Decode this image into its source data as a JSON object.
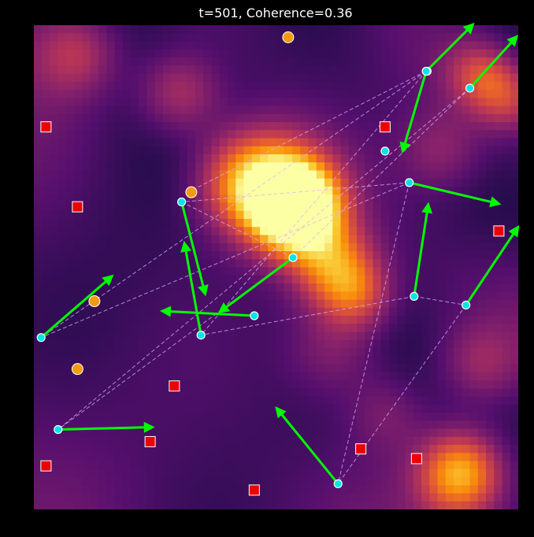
{
  "chart_data": {
    "type": "scatter",
    "title": "t=501, Coherence=0.36",
    "xlabel": "",
    "ylabel": "",
    "xlim": [
      0,
      1
    ],
    "ylim": [
      0,
      1
    ],
    "grid": false,
    "colors": {
      "agent_fill": "#00e5e5",
      "agent_edge": "#ffffff",
      "arrow": "#00ff00",
      "link": "#d9b3ff",
      "food_fill": "#f59a14",
      "obstacle_fill": "#ee0000",
      "background": "#000000"
    },
    "heatmap_peaks": [
      {
        "x": 0.545,
        "y": 0.62,
        "strength": 1.0,
        "spread": 0.06
      },
      {
        "x": 0.5,
        "y": 0.66,
        "strength": 0.55,
        "spread": 0.08
      },
      {
        "x": 0.62,
        "y": 0.5,
        "strength": 0.5,
        "spread": 0.06
      },
      {
        "x": 0.67,
        "y": 0.44,
        "strength": 0.3,
        "spread": 0.05
      },
      {
        "x": 0.43,
        "y": 0.68,
        "strength": 0.35,
        "spread": 0.07
      },
      {
        "x": 0.3,
        "y": 0.86,
        "strength": 0.3,
        "spread": 0.06
      },
      {
        "x": 0.09,
        "y": 0.94,
        "strength": 0.25,
        "spread": 0.06
      },
      {
        "x": 0.92,
        "y": 0.9,
        "strength": 0.3,
        "spread": 0.05
      },
      {
        "x": 0.98,
        "y": 0.85,
        "strength": 0.3,
        "spread": 0.05
      },
      {
        "x": 0.88,
        "y": 0.075,
        "strength": 0.62,
        "spread": 0.06
      },
      {
        "x": 0.73,
        "y": 0.2,
        "strength": 0.18,
        "spread": 0.06
      },
      {
        "x": 0.62,
        "y": 0.33,
        "strength": 0.22,
        "spread": 0.07
      },
      {
        "x": 0.92,
        "y": 0.3,
        "strength": 0.22,
        "spread": 0.06
      },
      {
        "x": 0.84,
        "y": 0.74,
        "strength": 0.2,
        "spread": 0.06
      }
    ],
    "agents": [
      {
        "x": 0.81,
        "y": 0.905,
        "u": 0.1,
        "v": 0.1
      },
      {
        "x": 0.812,
        "y": 0.905,
        "u": 0.0,
        "v": 0.0
      },
      {
        "x": 0.725,
        "y": 0.74,
        "u": 0.0,
        "v": 0.0
      },
      {
        "x": 0.81,
        "y": 0.905,
        "u": -0.05,
        "v": -0.17
      },
      {
        "x": 0.9,
        "y": 0.87,
        "u": 0.1,
        "v": 0.11
      },
      {
        "x": 0.775,
        "y": 0.675,
        "u": 0.19,
        "v": -0.045
      },
      {
        "x": 0.305,
        "y": 0.635,
        "u": 0.05,
        "v": -0.195
      },
      {
        "x": 0.535,
        "y": 0.52,
        "u": -0.155,
        "v": -0.115
      },
      {
        "x": 0.015,
        "y": 0.355,
        "u": 0.15,
        "v": 0.13
      },
      {
        "x": 0.455,
        "y": 0.4,
        "u": -0.195,
        "v": 0.01
      },
      {
        "x": 0.345,
        "y": 0.36,
        "u": -0.035,
        "v": 0.195
      },
      {
        "x": 0.785,
        "y": 0.44,
        "u": 0.03,
        "v": 0.195
      },
      {
        "x": 0.892,
        "y": 0.422,
        "u": 0.11,
        "v": 0.165
      },
      {
        "x": 0.05,
        "y": 0.165,
        "u": 0.2,
        "v": 0.005
      },
      {
        "x": 0.628,
        "y": 0.053,
        "u": -0.13,
        "v": 0.16
      }
    ],
    "links": [
      [
        0.81,
        0.905,
        0.015,
        0.355
      ],
      [
        0.81,
        0.905,
        0.345,
        0.36
      ],
      [
        0.81,
        0.905,
        0.328,
        0.66
      ],
      [
        0.9,
        0.87,
        0.05,
        0.165
      ],
      [
        0.9,
        0.87,
        0.535,
        0.52
      ],
      [
        0.775,
        0.675,
        0.015,
        0.355
      ],
      [
        0.775,
        0.675,
        0.305,
        0.635
      ],
      [
        0.775,
        0.675,
        0.628,
        0.053
      ],
      [
        0.305,
        0.635,
        0.535,
        0.52
      ],
      [
        0.535,
        0.52,
        0.05,
        0.165
      ],
      [
        0.785,
        0.44,
        0.345,
        0.36
      ],
      [
        0.785,
        0.44,
        0.892,
        0.422
      ],
      [
        0.892,
        0.422,
        0.628,
        0.053
      ]
    ],
    "food": [
      {
        "x": 0.525,
        "y": 0.975
      },
      {
        "x": 0.325,
        "y": 0.655
      },
      {
        "x": 0.125,
        "y": 0.43
      },
      {
        "x": 0.09,
        "y": 0.29
      }
    ],
    "obstacles": [
      {
        "x": 0.025,
        "y": 0.79
      },
      {
        "x": 0.09,
        "y": 0.625
      },
      {
        "x": 0.725,
        "y": 0.79
      },
      {
        "x": 0.96,
        "y": 0.575
      },
      {
        "x": 0.29,
        "y": 0.255
      },
      {
        "x": 0.24,
        "y": 0.14
      },
      {
        "x": 0.025,
        "y": 0.09
      },
      {
        "x": 0.455,
        "y": 0.04
      },
      {
        "x": 0.675,
        "y": 0.125
      },
      {
        "x": 0.79,
        "y": 0.105
      }
    ]
  }
}
